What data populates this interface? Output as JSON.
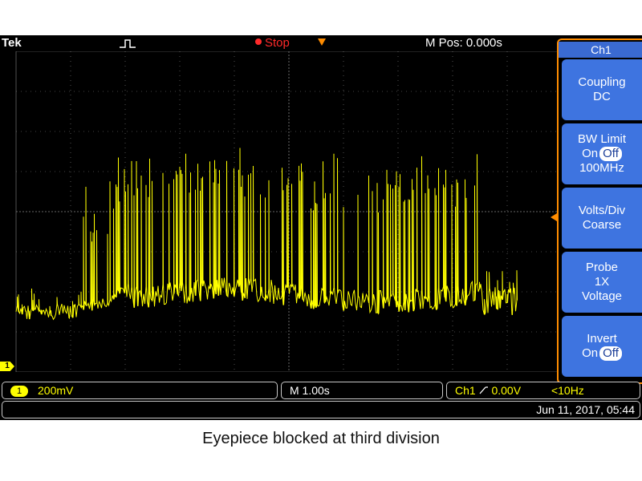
{
  "status_bar": {
    "brand": "Tek",
    "acquisition_state": "Stop",
    "horizontal_position": "M Pos: 0.000s",
    "state_color": "#ff2a2a"
  },
  "side_menu": {
    "title": "Ch1",
    "buttons": [
      {
        "line1": "Coupling",
        "line2": "DC"
      },
      {
        "line1": "BW Limit",
        "on": "On",
        "off": "Off",
        "line3": "100MHz"
      },
      {
        "line1": "Volts/Div",
        "line2": "Coarse"
      },
      {
        "line1": "Probe",
        "line2": "1X",
        "line3": "Voltage"
      },
      {
        "line1": "Invert",
        "on": "On",
        "off": "Off"
      }
    ]
  },
  "readouts": {
    "channel_badge": "1",
    "volts_per_div": "200mV",
    "time_per_div": "M 1.00s",
    "trigger_source": "Ch1",
    "trigger_slope_icon": "rising-edge-icon",
    "trigger_level": "0.00V",
    "trigger_frequency": "<10Hz",
    "datetime": "Jun 11, 2017, 05:44"
  },
  "channel_marker": "1",
  "caption": "Eyepiece blocked at third division",
  "colors": {
    "trace": "#ffff00",
    "menu": "#3e74e0",
    "frame": "#ff8c00",
    "background": "#000000"
  }
}
